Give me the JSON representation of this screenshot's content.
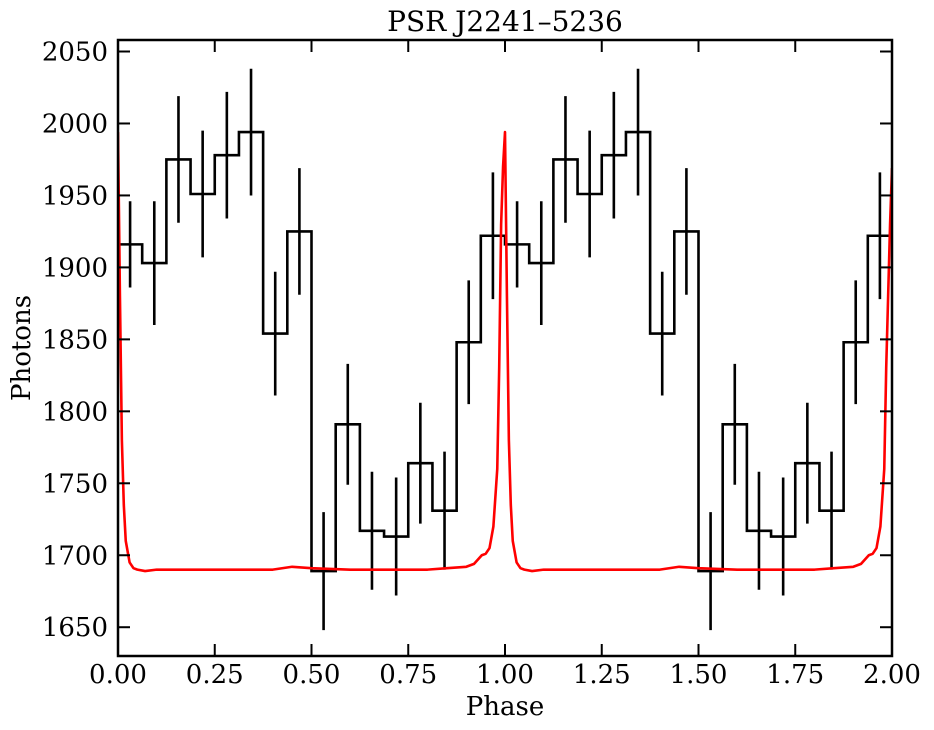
{
  "chart_data": {
    "type": "line",
    "title": "PSR J2241–5236",
    "xlabel": "Phase",
    "ylabel": "Photons",
    "xlim": [
      0,
      2
    ],
    "ylim": [
      1630,
      2058
    ],
    "x_ticks": [
      0,
      0.25,
      0.5,
      0.75,
      1.0,
      1.25,
      1.5,
      1.75,
      2.0
    ],
    "x_tick_labels": [
      "0.00",
      "0.25",
      "0.50",
      "0.75",
      "1.00",
      "1.25",
      "1.50",
      "1.75",
      "2.00"
    ],
    "y_ticks": [
      1650,
      1700,
      1750,
      1800,
      1850,
      1900,
      1950,
      2000,
      2050
    ],
    "y_tick_labels": [
      "1650",
      "1700",
      "1750",
      "1800",
      "1850",
      "1900",
      "1950",
      "2000",
      "2050"
    ],
    "grid": false,
    "series": [
      {
        "style": "step-histogram",
        "color": "#000000",
        "bin_width": 0.0625,
        "bin_centers": [
          0.03125,
          0.09375,
          0.15625,
          0.21875,
          0.28125,
          0.34375,
          0.40625,
          0.46875,
          0.53125,
          0.59375,
          0.65625,
          0.71875,
          0.78125,
          0.84375,
          0.90625,
          0.96875
        ],
        "values": [
          1916,
          1903,
          1975,
          1951,
          1978,
          1994,
          1854,
          1925,
          1689,
          1791,
          1717,
          1713,
          1764,
          1731,
          1848,
          1922
        ],
        "errors": [
          30,
          43,
          44,
          44,
          44,
          44,
          43,
          44,
          41,
          42,
          41,
          41,
          42,
          41,
          43,
          44
        ],
        "repeat_period": 1.0
      },
      {
        "style": "line",
        "color": "#ff0000",
        "x": [
          0,
          0.005,
          0.01,
          0.015,
          0.02,
          0.03,
          0.04,
          0.05,
          0.07,
          0.1,
          0.2,
          0.3,
          0.35,
          0.4,
          0.45,
          0.5,
          0.6,
          0.7,
          0.8,
          0.85,
          0.9,
          0.92,
          0.94,
          0.95,
          0.96,
          0.97,
          0.98,
          0.985,
          0.99,
          0.995,
          1.0,
          1.005,
          1.01,
          1.015,
          1.02,
          1.03,
          1.04,
          1.05,
          1.07,
          1.1,
          1.2,
          1.3,
          1.35,
          1.4,
          1.45,
          1.5,
          1.6,
          1.7,
          1.8,
          1.85,
          1.9,
          1.92,
          1.94,
          1.95,
          1.96,
          1.97,
          1.98,
          1.985,
          1.99,
          1.995,
          2.0
        ],
        "y": [
          1994,
          1880,
          1780,
          1735,
          1710,
          1695,
          1691,
          1690,
          1689,
          1690,
          1690,
          1690,
          1690,
          1690,
          1692,
          1691,
          1690,
          1690,
          1690,
          1691,
          1692,
          1694,
          1700,
          1701,
          1705,
          1720,
          1760,
          1830,
          1930,
          1970,
          1994,
          1880,
          1780,
          1735,
          1710,
          1695,
          1691,
          1690,
          1689,
          1690,
          1690,
          1690,
          1690,
          1690,
          1692,
          1691,
          1690,
          1690,
          1690,
          1691,
          1692,
          1694,
          1700,
          1701,
          1705,
          1720,
          1760,
          1830,
          1880,
          1930,
          1969
        ]
      }
    ]
  }
}
